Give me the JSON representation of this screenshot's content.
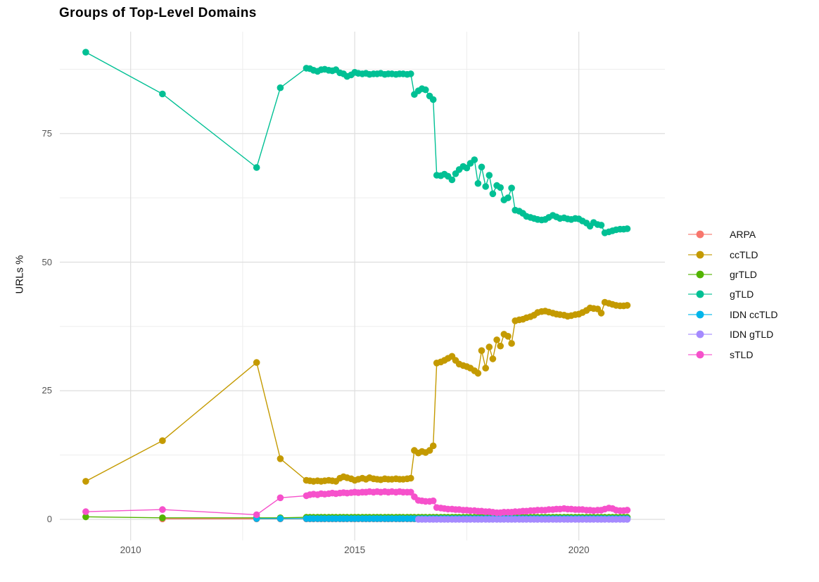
{
  "title": "Groups of Top-Level Domains",
  "ylabel": "URLs %",
  "chart_data": {
    "type": "line-scatter",
    "title": "Groups of Top-Level Domains",
    "xlabel": "",
    "ylabel": "URLs %",
    "grid": true,
    "legend_position": "right",
    "x_axis": {
      "range": [
        2008.42,
        2021.92
      ],
      "ticks": [
        {
          "v": 2010,
          "label": "2010"
        },
        {
          "v": 2015,
          "label": "2015"
        },
        {
          "v": 2020,
          "label": "2020"
        }
      ],
      "minor": [
        2012.5,
        2017.5
      ]
    },
    "y_axis": {
      "range": [
        -4.1,
        94.8
      ],
      "ticks": [
        {
          "v": 0,
          "label": "0"
        },
        {
          "v": 25,
          "label": "25"
        },
        {
          "v": 50,
          "label": "50"
        },
        {
          "v": 75,
          "label": "75"
        }
      ],
      "minor": [
        12.5,
        37.5,
        62.5,
        87.5
      ]
    },
    "grid_x": [
      2013.92,
      2014.0,
      2014.08,
      2014.17,
      2014.25,
      2014.33,
      2014.42,
      2014.5,
      2014.58,
      2014.67,
      2014.75,
      2014.83,
      2014.92,
      2015.0,
      2015.08,
      2015.17,
      2015.25,
      2015.33,
      2015.42,
      2015.5,
      2015.58,
      2015.67,
      2015.75,
      2015.83,
      2015.92,
      2016.0,
      2016.08,
      2016.17,
      2016.25,
      2016.33,
      2016.42,
      2016.5,
      2016.58,
      2016.67,
      2016.75,
      2016.83,
      2016.92,
      2017.0,
      2017.08,
      2017.17,
      2017.25,
      2017.33,
      2017.42,
      2017.5,
      2017.58,
      2017.67,
      2017.75,
      2017.83,
      2017.92,
      2018.0,
      2018.08,
      2018.17,
      2018.25,
      2018.33,
      2018.42,
      2018.5,
      2018.58,
      2018.67,
      2018.75,
      2018.83,
      2018.92,
      2019.0,
      2019.08,
      2019.17,
      2019.25,
      2019.33,
      2019.42,
      2019.5,
      2019.58,
      2019.67,
      2019.75,
      2019.83,
      2019.92,
      2020.0,
      2020.08,
      2020.17,
      2020.25,
      2020.33,
      2020.42,
      2020.5,
      2020.58,
      2020.67,
      2020.75,
      2020.83,
      2020.92,
      2021.0,
      2021.08
    ],
    "series": [
      {
        "name": "ARPA",
        "color": "#F8766D",
        "x_pre": [
          2010.71,
          2012.81,
          2013.34
        ],
        "y_pre": [
          0.1,
          0.1,
          0.1
        ],
        "grid_start": 0,
        "grid_y_const": 0.1
      },
      {
        "name": "ccTLD",
        "color": "#C49A00",
        "x_pre": [
          2009.0,
          2010.71,
          2012.81,
          2013.34
        ],
        "y_pre": [
          7.4,
          15.3,
          30.5,
          11.8
        ],
        "grid_start": 0,
        "grid_y": [
          7.6,
          7.5,
          7.4,
          7.5,
          7.4,
          7.5,
          7.6,
          7.5,
          7.4,
          8.0,
          8.3,
          8.1,
          7.9,
          7.6,
          7.8,
          8.0,
          7.8,
          8.1,
          7.9,
          7.8,
          7.7,
          7.9,
          7.8,
          7.8,
          7.9,
          7.8,
          7.8,
          7.9,
          8.0,
          13.4,
          12.9,
          13.2,
          13.0,
          13.4,
          14.3,
          30.4,
          30.6,
          30.9,
          31.3,
          31.7,
          30.9,
          30.2,
          29.9,
          29.7,
          29.4,
          28.9,
          28.4,
          32.8,
          29.4,
          33.5,
          31.2,
          34.9,
          33.7,
          36.0,
          35.6,
          34.2,
          38.6,
          38.8,
          38.9,
          39.2,
          39.4,
          39.7,
          40.2,
          40.4,
          40.5,
          40.3,
          40.1,
          39.9,
          39.8,
          39.7,
          39.5,
          39.6,
          39.8,
          39.9,
          40.2,
          40.6,
          41.1,
          41.0,
          40.9,
          40.1,
          42.2,
          42.0,
          41.8,
          41.6,
          41.5,
          41.5,
          41.6
        ]
      },
      {
        "name": "grTLD",
        "color": "#53B400",
        "x_pre": [
          2009.0,
          2010.71,
          2012.81,
          2013.34
        ],
        "y_pre": [
          0.5,
          0.3,
          0.3,
          0.3
        ],
        "grid_start": 0,
        "grid_y_const": 0.4
      },
      {
        "name": "gTLD",
        "color": "#00C094",
        "x_pre": [
          2009.0,
          2010.71,
          2012.81,
          2013.34
        ],
        "y_pre": [
          90.8,
          82.7,
          68.4,
          83.9
        ],
        "grid_start": 0,
        "grid_y": [
          87.7,
          87.6,
          87.3,
          87.1,
          87.4,
          87.5,
          87.3,
          87.2,
          87.4,
          86.8,
          86.6,
          86.1,
          86.4,
          86.9,
          86.7,
          86.6,
          86.7,
          86.5,
          86.6,
          86.6,
          86.7,
          86.5,
          86.6,
          86.6,
          86.5,
          86.6,
          86.6,
          86.5,
          86.6,
          82.6,
          83.3,
          83.7,
          83.5,
          82.3,
          81.6,
          66.9,
          66.8,
          67.1,
          66.7,
          66.0,
          67.2,
          68.0,
          68.6,
          68.3,
          69.2,
          69.9,
          65.3,
          68.5,
          64.7,
          66.9,
          63.3,
          64.9,
          64.5,
          62.1,
          62.5,
          64.4,
          60.1,
          59.9,
          59.5,
          58.9,
          58.7,
          58.5,
          58.3,
          58.2,
          58.3,
          58.7,
          59.1,
          58.8,
          58.5,
          58.6,
          58.4,
          58.3,
          58.5,
          58.4,
          58.0,
          57.6,
          57.0,
          57.7,
          57.3,
          57.2,
          55.7,
          55.9,
          56.1,
          56.3,
          56.4,
          56.4,
          56.5
        ]
      },
      {
        "name": "IDN ccTLD",
        "color": "#00B6EB",
        "x_pre": [
          2012.81,
          2013.34
        ],
        "y_pre": [
          0.15,
          0.15
        ],
        "grid_start": 0,
        "grid_y_const": 0.15
      },
      {
        "name": "IDN gTLD",
        "color": "#A58AFF",
        "x_pre": [],
        "y_pre": [],
        "grid_start": 30,
        "grid_y_const": 0.0
      },
      {
        "name": "sTLD",
        "color": "#F651CB",
        "x_pre": [
          2009.0,
          2010.71,
          2012.81,
          2013.34
        ],
        "y_pre": [
          1.5,
          1.9,
          0.9,
          4.2
        ],
        "grid_start": 0,
        "grid_y": [
          4.6,
          4.8,
          4.9,
          4.8,
          5.0,
          4.9,
          5.0,
          5.1,
          5.0,
          5.1,
          5.2,
          5.1,
          5.2,
          5.3,
          5.2,
          5.3,
          5.3,
          5.4,
          5.3,
          5.4,
          5.3,
          5.4,
          5.3,
          5.4,
          5.3,
          5.4,
          5.3,
          5.3,
          5.3,
          4.4,
          3.7,
          3.6,
          3.5,
          3.5,
          3.6,
          2.3,
          2.2,
          2.1,
          2.0,
          2.0,
          1.9,
          1.9,
          1.8,
          1.8,
          1.7,
          1.7,
          1.6,
          1.6,
          1.5,
          1.5,
          1.4,
          1.3,
          1.3,
          1.4,
          1.4,
          1.4,
          1.5,
          1.5,
          1.6,
          1.6,
          1.7,
          1.7,
          1.8,
          1.8,
          1.8,
          1.9,
          1.9,
          2.0,
          2.0,
          2.1,
          2.0,
          2.0,
          1.9,
          1.9,
          1.9,
          1.8,
          1.8,
          1.7,
          1.8,
          1.8,
          2.0,
          2.2,
          2.1,
          1.8,
          1.7,
          1.7,
          1.8
        ]
      }
    ],
    "style": {
      "grid_major_color": "#DEDEDE",
      "grid_minor_color": "#EDEDED",
      "background": "#FFFFFF"
    }
  }
}
